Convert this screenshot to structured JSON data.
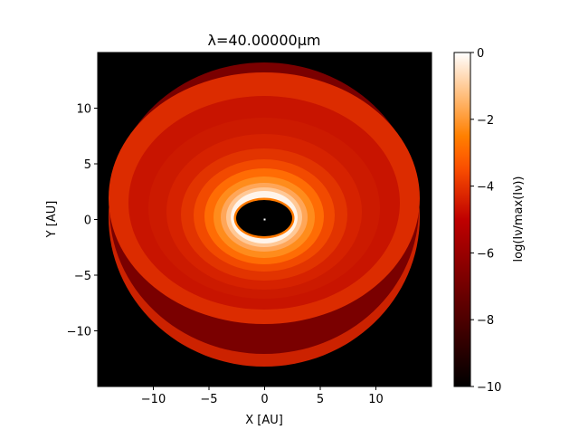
{
  "chart_data": {
    "type": "heatmap",
    "title": "λ=40.00000μm",
    "xlabel": "X [AU]",
    "ylabel": "Y [AU]",
    "xlim": [
      -15,
      15
    ],
    "ylim": [
      -15,
      15
    ],
    "xticks": [
      -10,
      -5,
      0,
      5,
      10
    ],
    "yticks": [
      -10,
      -5,
      0,
      5,
      10
    ],
    "xtick_labels": [
      "−10",
      "−5",
      "0",
      "5",
      "10"
    ],
    "ytick_labels": [
      "−10",
      "−5",
      "0",
      "5",
      "10"
    ],
    "colormap": "gist_heat",
    "background_color": "#000000",
    "colorbar": {
      "label": "log(Iν/max(Iν))",
      "range": [
        -10,
        0
      ],
      "ticks": [
        0,
        -2,
        -4,
        -6,
        -8,
        -10
      ],
      "tick_labels": [
        "0",
        "−2",
        "−4",
        "−6",
        "−8",
        "−10"
      ]
    },
    "grid": false
  }
}
